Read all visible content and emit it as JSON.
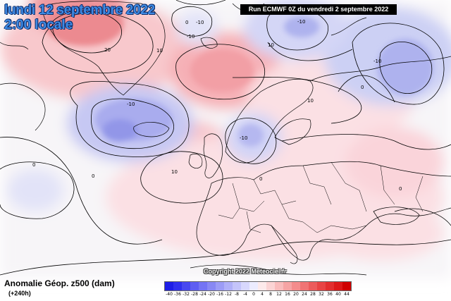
{
  "header": {
    "date_line": "lundi 12 septembre 2022",
    "time_line": "2:00 locale",
    "run_label": "Run ECMWF 0Z du vendredi 2 septembre 2022"
  },
  "footer": {
    "variable_label": "Anomalie Géop. z500 (dam)",
    "lead_time": "(+240h)",
    "copyright": "Copyright 2022 Meteociel.fr"
  },
  "legend": {
    "ticks": [
      "-40",
      "-36",
      "-32",
      "-28",
      "-24",
      "-20",
      "-16",
      "-12",
      "-8",
      "-4",
      "0",
      "4",
      "8",
      "12",
      "16",
      "20",
      "24",
      "28",
      "32",
      "36",
      "40",
      "44"
    ],
    "colors": [
      "#1e1ee6",
      "#3030ee",
      "#4848f0",
      "#5e5ef2",
      "#7474f4",
      "#8888f4",
      "#9c9cf6",
      "#b0b0f8",
      "#c4c4fa",
      "#d8d8fc",
      "#ececfe",
      "#fdeaea",
      "#fbd4d4",
      "#f9bcbc",
      "#f6a4a4",
      "#f48c8c",
      "#f07474",
      "#ec5c5c",
      "#e84444",
      "#e22e2e",
      "#dc1818",
      "#d00000"
    ]
  },
  "contour_labels": [
    {
      "text": "-10"
    },
    {
      "text": "20"
    },
    {
      "text": "10"
    },
    {
      "text": "-10"
    },
    {
      "text": "10"
    },
    {
      "text": "-10"
    },
    {
      "text": "-10"
    },
    {
      "text": "0"
    },
    {
      "text": "-10"
    },
    {
      "text": "0"
    },
    {
      "text": "-10"
    },
    {
      "text": "10"
    },
    {
      "text": "0"
    },
    {
      "text": "0"
    },
    {
      "text": "0"
    },
    {
      "text": "10"
    },
    {
      "text": "0"
    }
  ]
}
